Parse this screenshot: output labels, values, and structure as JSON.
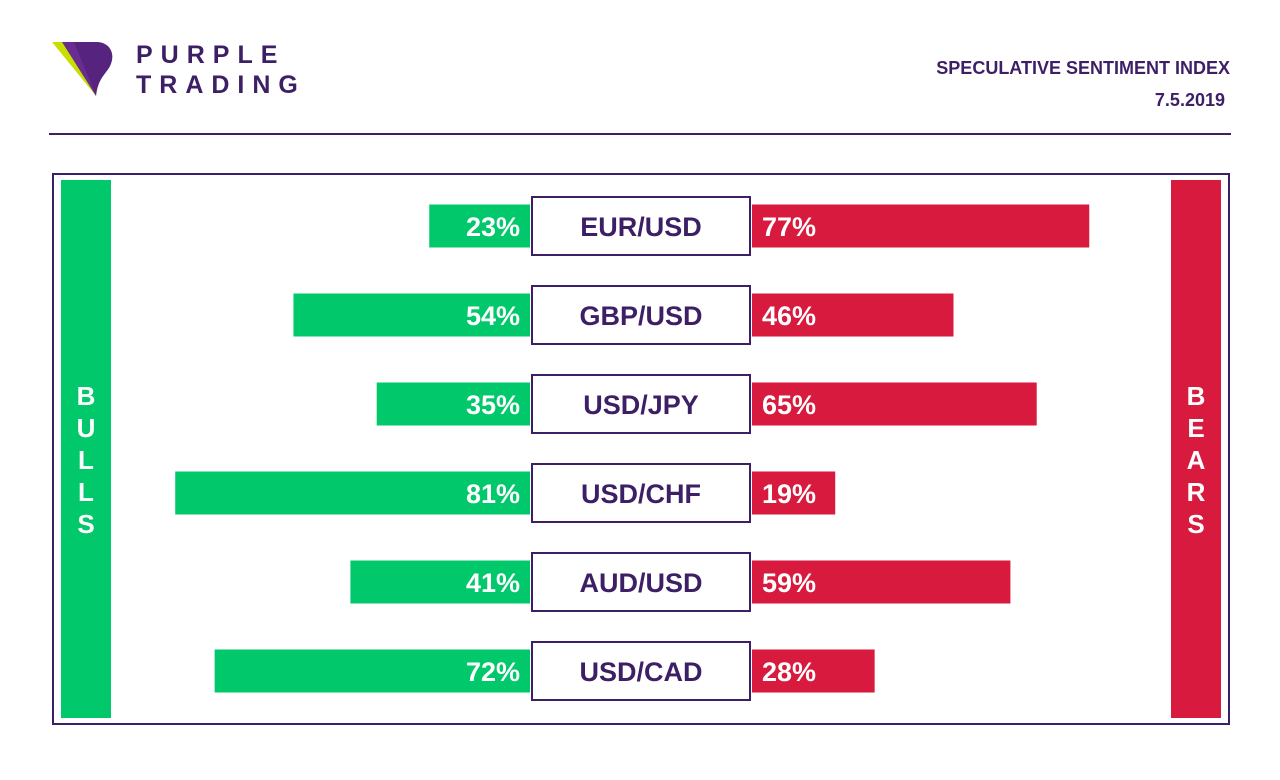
{
  "brand": {
    "line1": "PURPLE",
    "line2": "TRADING"
  },
  "header": {
    "title": "SPECULATIVE SENTIMENT INDEX",
    "date": "7.5.2019"
  },
  "labels": {
    "bulls": "BULLS",
    "bears": "BEARS"
  },
  "colors": {
    "purple": "#3d1f66",
    "bull": "#00c86b",
    "bear": "#d71a3d"
  },
  "chart_data": {
    "type": "bar",
    "categories": [
      "EUR/USD",
      "GBP/USD",
      "USD/JPY",
      "USD/CHF",
      "AUD/USD",
      "USD/CAD"
    ],
    "series": [
      {
        "name": "BULLS",
        "values": [
          23,
          54,
          35,
          81,
          41,
          72
        ],
        "labels": [
          "23%",
          "54%",
          "35%",
          "81%",
          "41%",
          "72%"
        ]
      },
      {
        "name": "BEARS",
        "values": [
          77,
          46,
          65,
          19,
          59,
          28
        ],
        "labels": [
          "77%",
          "46%",
          "65%",
          "19%",
          "59%",
          "28%"
        ]
      }
    ]
  }
}
